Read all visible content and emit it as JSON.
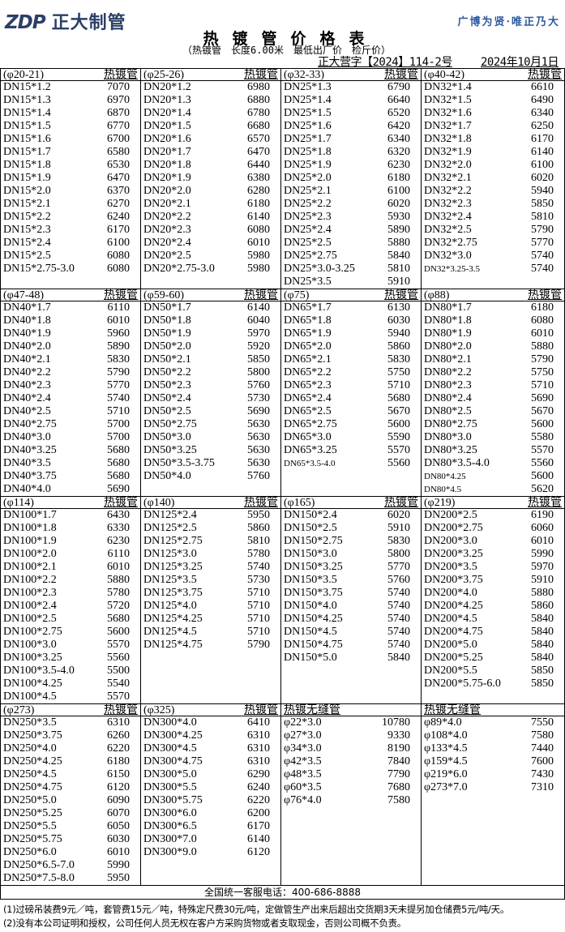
{
  "header": {
    "logo_text": "ZDP",
    "logo_cn": "正大制管",
    "slogan": "广博为贤·唯正乃大",
    "title": "热镀管价格表",
    "subtitle": "（热镀管　长度6.00米　最低出厂价　检斤价）",
    "doc_number": "正大营字【2024】114-2号",
    "date": "2024年10月1日"
  },
  "colors": {
    "logo": "#2b3f66",
    "slogan": "#2d5aa0"
  },
  "sections": [
    {
      "columns": [
        {
          "range": "(φ20-21)",
          "type": "热镀管",
          "items": [
            [
              "DN15*1.2",
              "7070"
            ],
            [
              "DN15*1.3",
              "6970"
            ],
            [
              "DN15*1.4",
              "6870"
            ],
            [
              "DN15*1.5",
              "6770"
            ],
            [
              "DN15*1.6",
              "6700"
            ],
            [
              "DN15*1.7",
              "6580"
            ],
            [
              "DN15*1.8",
              "6530"
            ],
            [
              "DN15*1.9",
              "6470"
            ],
            [
              "DN15*2.0",
              "6370"
            ],
            [
              "DN15*2.1",
              "6270"
            ],
            [
              "DN15*2.2",
              "6240"
            ],
            [
              "DN15*2.3",
              "6170"
            ],
            [
              "DN15*2.4",
              "6100"
            ],
            [
              "DN15*2.5",
              "6080"
            ],
            [
              "DN15*2.75-3.0",
              "6080"
            ]
          ]
        },
        {
          "range": "(φ25-26)",
          "type": "热镀管",
          "items": [
            [
              "DN20*1.2",
              "6980"
            ],
            [
              "DN20*1.3",
              "6880"
            ],
            [
              "DN20*1.4",
              "6780"
            ],
            [
              "DN20*1.5",
              "6680"
            ],
            [
              "DN20*1.6",
              "6570"
            ],
            [
              "DN20*1.7",
              "6470"
            ],
            [
              "DN20*1.8",
              "6440"
            ],
            [
              "DN20*1.9",
              "6380"
            ],
            [
              "DN20*2.0",
              "6280"
            ],
            [
              "DN20*2.1",
              "6180"
            ],
            [
              "DN20*2.2",
              "6140"
            ],
            [
              "DN20*2.3",
              "6080"
            ],
            [
              "DN20*2.4",
              "6010"
            ],
            [
              "DN20*2.5",
              "5980"
            ],
            [
              "DN20*2.75-3.0",
              "5980"
            ]
          ]
        },
        {
          "range": "(φ32-33)",
          "type": "热镀管",
          "items": [
            [
              "DN25*1.3",
              "6790"
            ],
            [
              "DN25*1.4",
              "6640"
            ],
            [
              "DN25*1.5",
              "6520"
            ],
            [
              "DN25*1.6",
              "6420"
            ],
            [
              "DN25*1.7",
              "6340"
            ],
            [
              "DN25*1.8",
              "6320"
            ],
            [
              "DN25*1.9",
              "6230"
            ],
            [
              "DN25*2.0",
              "6180"
            ],
            [
              "DN25*2.1",
              "6100"
            ],
            [
              "DN25*2.2",
              "6020"
            ],
            [
              "DN25*2.3",
              "5930"
            ],
            [
              "DN25*2.4",
              "5890"
            ],
            [
              "DN25*2.5",
              "5880"
            ],
            [
              "DN25*2.75",
              "5840"
            ],
            [
              "DN25*3.0-3.25",
              "5810"
            ],
            [
              "DN25*3.5",
              "5910"
            ]
          ]
        },
        {
          "range": "(φ40-42)",
          "type": "热镀管",
          "items": [
            [
              "DN32*1.4",
              "6610"
            ],
            [
              "DN32*1.5",
              "6490"
            ],
            [
              "DN32*1.6",
              "6340"
            ],
            [
              "DN32*1.7",
              "6250"
            ],
            [
              "DN32*1.8",
              "6170"
            ],
            [
              "DN32*1.9",
              "6140"
            ],
            [
              "DN32*2.0",
              "6100"
            ],
            [
              "DN32*2.1",
              "6020"
            ],
            [
              "DN32*2.2",
              "5940"
            ],
            [
              "DN32*2.3",
              "5850"
            ],
            [
              "DN32*2.4",
              "5810"
            ],
            [
              "DN32*2.5",
              "5790"
            ],
            [
              "DN32*2.75",
              "5770"
            ],
            [
              "DN32*3.0",
              "5740"
            ],
            [
              "DN32*3.25-3.5",
              "5740"
            ]
          ]
        }
      ]
    },
    {
      "columns": [
        {
          "range": "(φ47-48)",
          "type": "热镀管",
          "items": [
            [
              "DN40*1.7",
              "6110"
            ],
            [
              "DN40*1.8",
              "6010"
            ],
            [
              "DN40*1.9",
              "5960"
            ],
            [
              "DN40*2.0",
              "5890"
            ],
            [
              "DN40*2.1",
              "5830"
            ],
            [
              "DN40*2.2",
              "5790"
            ],
            [
              "DN40*2.3",
              "5770"
            ],
            [
              "DN40*2.4",
              "5740"
            ],
            [
              "DN40*2.5",
              "5710"
            ],
            [
              "DN40*2.75",
              "5700"
            ],
            [
              "DN40*3.0",
              "5700"
            ],
            [
              "DN40*3.25",
              "5680"
            ],
            [
              "DN40*3.5",
              "5680"
            ],
            [
              "DN40*3.75",
              "5680"
            ],
            [
              "DN40*4.0",
              "5690"
            ]
          ]
        },
        {
          "range": "(φ59-60)",
          "type": "热镀管",
          "items": [
            [
              "DN50*1.7",
              "6140"
            ],
            [
              "DN50*1.8",
              "6040"
            ],
            [
              "DN50*1.9",
              "5970"
            ],
            [
              "DN50*2.0",
              "5920"
            ],
            [
              "DN50*2.1",
              "5850"
            ],
            [
              "DN50*2.2",
              "5800"
            ],
            [
              "DN50*2.3",
              "5760"
            ],
            [
              "DN50*2.4",
              "5730"
            ],
            [
              "DN50*2.5",
              "5690"
            ],
            [
              "DN50*2.75",
              "5630"
            ],
            [
              "DN50*3.0",
              "5630"
            ],
            [
              "DN50*3.25",
              "5630"
            ],
            [
              "DN50*3.5-3.75",
              "5630"
            ],
            [
              "DN50*4.0",
              "5760"
            ]
          ]
        },
        {
          "range": "(φ75)",
          "type": "热镀管",
          "items": [
            [
              "DN65*1.7",
              "6130"
            ],
            [
              "DN65*1.8",
              "6030"
            ],
            [
              "DN65*1.9",
              "5940"
            ],
            [
              "DN65*2.0",
              "5860"
            ],
            [
              "DN65*2.1",
              "5830"
            ],
            [
              "DN65*2.2",
              "5750"
            ],
            [
              "DN65*2.3",
              "5710"
            ],
            [
              "DN65*2.4",
              "5680"
            ],
            [
              "DN65*2.5",
              "5670"
            ],
            [
              "DN65*2.75",
              "5600"
            ],
            [
              "DN65*3.0",
              "5590"
            ],
            [
              "DN65*3.25",
              "5570"
            ],
            [
              "DN65*3.5-4.0",
              "5560"
            ]
          ]
        },
        {
          "range": "(φ88)",
          "type": "热镀管",
          "items": [
            [
              "DN80*1.7",
              "6180"
            ],
            [
              "DN80*1.8",
              "6080"
            ],
            [
              "DN80*1.9",
              "6010"
            ],
            [
              "DN80*2.0",
              "5880"
            ],
            [
              "DN80*2.1",
              "5790"
            ],
            [
              "DN80*2.2",
              "5750"
            ],
            [
              "DN80*2.3",
              "5710"
            ],
            [
              "DN80*2.4",
              "5690"
            ],
            [
              "DN80*2.5",
              "5670"
            ],
            [
              "DN80*2.75",
              "5600"
            ],
            [
              "DN80*3.0",
              "5580"
            ],
            [
              "DN80*3.25",
              "5570"
            ],
            [
              "DN80*3.5-4.0",
              "5560"
            ],
            [
              "DN80*4.25",
              "5600"
            ],
            [
              "DN80*4.5",
              "5620"
            ]
          ]
        }
      ]
    },
    {
      "columns": [
        {
          "range": "(φ114)",
          "type": "热镀管",
          "items": [
            [
              "DN100*1.7",
              "6430"
            ],
            [
              "DN100*1.8",
              "6330"
            ],
            [
              "DN100*1.9",
              "6230"
            ],
            [
              "DN100*2.0",
              "6110"
            ],
            [
              "DN100*2.1",
              "6010"
            ],
            [
              "DN100*2.2",
              "5880"
            ],
            [
              "DN100*2.3",
              "5780"
            ],
            [
              "DN100*2.4",
              "5720"
            ],
            [
              "DN100*2.5",
              "5680"
            ],
            [
              "DN100*2.75",
              "5600"
            ],
            [
              "DN100*3.0",
              "5570"
            ],
            [
              "DN100*3.25",
              "5560"
            ],
            [
              "DN100*3.5-4.0",
              "5500"
            ],
            [
              "DN100*4.25",
              "5540"
            ],
            [
              "DN100*4.5",
              "5570"
            ]
          ]
        },
        {
          "range": "(φ140)",
          "type": "热镀管",
          "items": [
            [
              "DN125*2.4",
              "5950"
            ],
            [
              "DN125*2.5",
              "5860"
            ],
            [
              "DN125*2.75",
              "5810"
            ],
            [
              "DN125*3.0",
              "5780"
            ],
            [
              "DN125*3.25",
              "5740"
            ],
            [
              "DN125*3.5",
              "5730"
            ],
            [
              "DN125*3.75",
              "5710"
            ],
            [
              "DN125*4.0",
              "5710"
            ],
            [
              "DN125*4.25",
              "5710"
            ],
            [
              "DN125*4.5",
              "5710"
            ],
            [
              "DN125*4.75",
              "5790"
            ]
          ]
        },
        {
          "range": "(φ165)",
          "type": "热镀管",
          "items": [
            [
              "DN150*2.4",
              "6020"
            ],
            [
              "DN150*2.5",
              "5910"
            ],
            [
              "DN150*2.75",
              "5830"
            ],
            [
              "DN150*3.0",
              "5800"
            ],
            [
              "DN150*3.25",
              "5770"
            ],
            [
              "DN150*3.5",
              "5760"
            ],
            [
              "DN150*3.75",
              "5740"
            ],
            [
              "DN150*4.0",
              "5740"
            ],
            [
              "DN150*4.25",
              "5740"
            ],
            [
              "DN150*4.5",
              "5740"
            ],
            [
              "DN150*4.75",
              "5740"
            ],
            [
              "DN150*5.0",
              "5840"
            ]
          ]
        },
        {
          "range": "(φ219)",
          "type": "热镀管",
          "items": [
            [
              "DN200*2.5",
              "6190"
            ],
            [
              "DN200*2.75",
              "6060"
            ],
            [
              "DN200*3.0",
              "6010"
            ],
            [
              "DN200*3.25",
              "5990"
            ],
            [
              "DN200*3.5",
              "5970"
            ],
            [
              "DN200*3.75",
              "5910"
            ],
            [
              "DN200*4.0",
              "5880"
            ],
            [
              "DN200*4.25",
              "5860"
            ],
            [
              "DN200*4.5",
              "5840"
            ],
            [
              "DN200*4.75",
              "5840"
            ],
            [
              "DN200*5.0",
              "5840"
            ],
            [
              "DN200*5.25",
              "5840"
            ],
            [
              "DN200*5.5",
              "5850"
            ],
            [
              "DN200*5.75-6.0",
              "5850"
            ]
          ]
        }
      ]
    },
    {
      "columns": [
        {
          "range": "(φ273)",
          "type": "热镀管",
          "items": [
            [
              "DN250*3.5",
              "6310"
            ],
            [
              "DN250*3.75",
              "6260"
            ],
            [
              "DN250*4.0",
              "6220"
            ],
            [
              "DN250*4.25",
              "6180"
            ],
            [
              "DN250*4.5",
              "6150"
            ],
            [
              "DN250*4.75",
              "6120"
            ],
            [
              "DN250*5.0",
              "6090"
            ],
            [
              "DN250*5.25",
              "6070"
            ],
            [
              "DN250*5.5",
              "6050"
            ],
            [
              "DN250*5.75",
              "6030"
            ],
            [
              "DN250*6.0",
              "6010"
            ],
            [
              "DN250*6.5-7.0",
              "5990"
            ],
            [
              "DN250*7.5-8.0",
              "5950"
            ]
          ]
        },
        {
          "range": "(φ325)",
          "type": "热镀管",
          "items": [
            [
              "DN300*4.0",
              "6410"
            ],
            [
              "DN300*4.25",
              "6310"
            ],
            [
              "DN300*4.5",
              "6310"
            ],
            [
              "DN300*4.75",
              "6310"
            ],
            [
              "DN300*5.0",
              "6290"
            ],
            [
              "DN300*5.5",
              "6240"
            ],
            [
              "DN300*5.75",
              "6220"
            ],
            [
              "DN300*6.0",
              "6200"
            ],
            [
              "DN300*6.5",
              "6170"
            ],
            [
              "DN300*7.0",
              "6140"
            ],
            [
              "DN300*9.0",
              "6120"
            ]
          ]
        },
        {
          "range": "热镀无缝管",
          "type": "",
          "items": [
            [
              "φ22*3.0",
              "10780"
            ],
            [
              "φ27*3.0",
              "9330"
            ],
            [
              "φ34*3.0",
              "8190"
            ],
            [
              "φ42*3.5",
              "7840"
            ],
            [
              "φ48*3.5",
              "7790"
            ],
            [
              "φ60*3.5",
              "7680"
            ],
            [
              "φ76*4.0",
              "7580"
            ]
          ]
        },
        {
          "range": "热镀无缝管",
          "type": "",
          "items": [
            [
              "φ89*4.0",
              "7550"
            ],
            [
              "φ108*4.0",
              "7580"
            ],
            [
              "φ133*4.5",
              "7440"
            ],
            [
              "φ159*4.5",
              "7600"
            ],
            [
              "φ219*6.0",
              "7430"
            ],
            [
              "φ273*7.0",
              "7310"
            ]
          ]
        }
      ]
    }
  ],
  "footer": {
    "hotline": "全国统一客服电话：400-686-8888",
    "notes": [
      "(1)过磅吊装费9元／吨，套管费15元／吨，特殊定尺费30元/吨，定做管生产出来后超出交货期3天未提另加仓储费5元/吨/天。",
      "(2)没有本公司证明和授权，公司任何人员无权在客户方采购货物或者支取现金，否则公司概不负责。"
    ]
  }
}
